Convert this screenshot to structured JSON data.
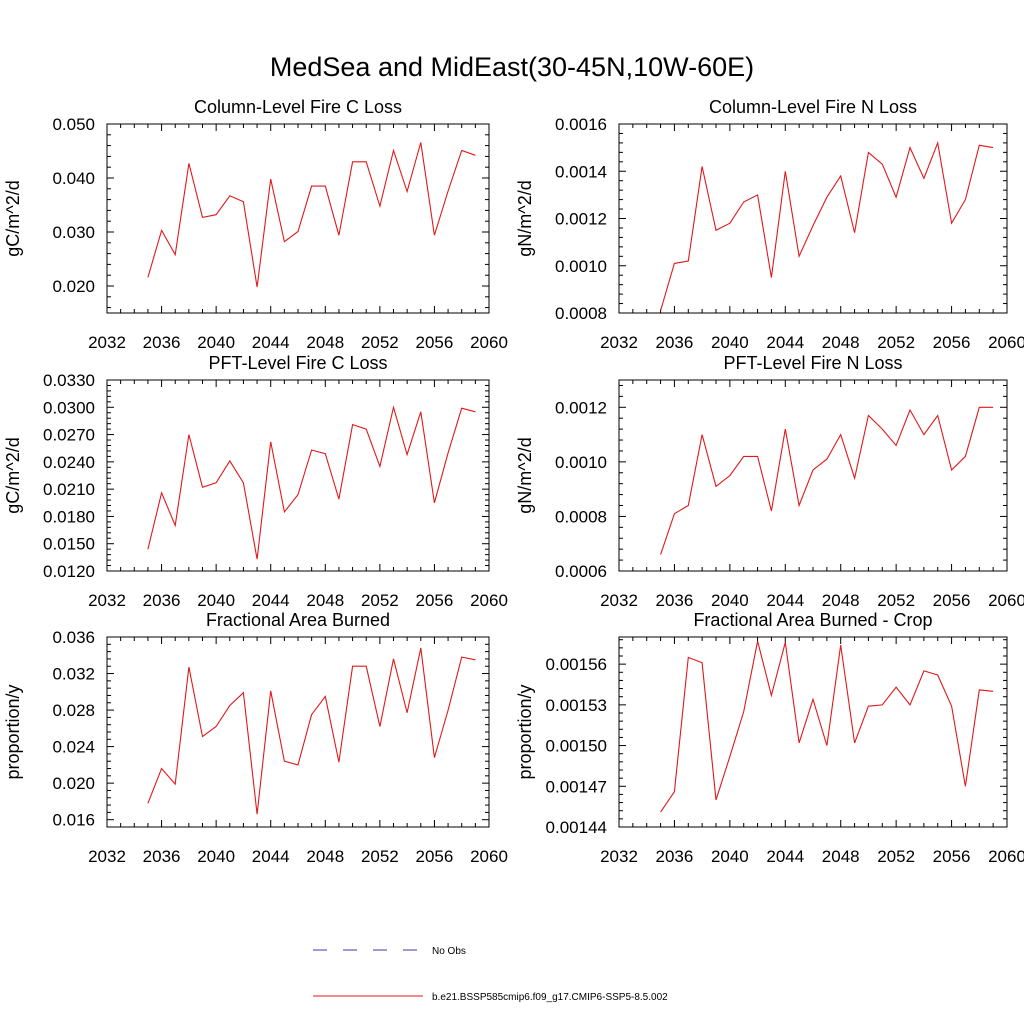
{
  "figure": {
    "title": "MedSea and MidEast(30-45N,10W-60E)"
  },
  "legend": {
    "entries": [
      {
        "label": "No Obs",
        "color": "#3a3aa8",
        "style": "dashed"
      },
      {
        "label": "b.e21.BSSP585cmip6.f09_g17.CMIP6-SSP5-8.5.002",
        "color": "#e0191a",
        "style": "solid"
      }
    ]
  },
  "chart_data": [
    {
      "type": "line",
      "title": "Column-Level Fire C Loss",
      "ylabel": "gC/m^2/d",
      "xlim": [
        2032,
        2060
      ],
      "ylim": [
        0.015,
        0.05
      ],
      "xticks": [
        "2032",
        "2036",
        "2040",
        "2044",
        "2048",
        "2052",
        "2056",
        "2060"
      ],
      "yticks": [
        "0.020",
        "0.030",
        "0.040",
        "0.050"
      ],
      "x": [
        2035,
        2036,
        2037,
        2038,
        2039,
        2040,
        2041,
        2042,
        2043,
        2044,
        2045,
        2046,
        2047,
        2048,
        2049,
        2050,
        2051,
        2052,
        2053,
        2054,
        2055,
        2056,
        2057,
        2058,
        2059
      ],
      "series": [
        {
          "color": "#e0191a",
          "values": [
            0.0216,
            0.0303,
            0.0258,
            0.0427,
            0.0327,
            0.0332,
            0.0367,
            0.0356,
            0.0198,
            0.0398,
            0.0282,
            0.0301,
            0.0385,
            0.0385,
            0.0294,
            0.043,
            0.043,
            0.0348,
            0.0451,
            0.0375,
            0.0466,
            0.0294,
            0.0376,
            0.0451,
            0.0442
          ]
        }
      ]
    },
    {
      "type": "line",
      "title": "Column-Level Fire N Loss",
      "ylabel": "gN/m^2/d",
      "xlim": [
        2032,
        2060
      ],
      "ylim": [
        0.0008,
        0.0016
      ],
      "xticks": [
        "2032",
        "2036",
        "2040",
        "2044",
        "2048",
        "2052",
        "2056",
        "2060"
      ],
      "yticks": [
        "0.0008",
        "0.0010",
        "0.0012",
        "0.0014",
        "0.0016"
      ],
      "x": [
        2035,
        2036,
        2037,
        2038,
        2039,
        2040,
        2041,
        2042,
        2043,
        2044,
        2045,
        2046,
        2047,
        2048,
        2049,
        2050,
        2051,
        2052,
        2053,
        2054,
        2055,
        2056,
        2057,
        2058,
        2059
      ],
      "series": [
        {
          "color": "#e0191a",
          "values": [
            0.00081,
            0.00101,
            0.00102,
            0.00142,
            0.00115,
            0.00118,
            0.00127,
            0.0013,
            0.00095,
            0.0014,
            0.00104,
            0.00117,
            0.00129,
            0.00138,
            0.00114,
            0.00148,
            0.00143,
            0.00129,
            0.0015,
            0.00137,
            0.00152,
            0.00118,
            0.00128,
            0.00151,
            0.0015
          ]
        }
      ]
    },
    {
      "type": "line",
      "title": "PFT-Level Fire C Loss",
      "ylabel": "gC/m^2/d",
      "xlim": [
        2032,
        2060
      ],
      "ylim": [
        0.012,
        0.033
      ],
      "xticks": [
        "2032",
        "2036",
        "2040",
        "2044",
        "2048",
        "2052",
        "2056",
        "2060"
      ],
      "yticks": [
        "0.0120",
        "0.0150",
        "0.0180",
        "0.0210",
        "0.0240",
        "0.0270",
        "0.0300",
        "0.0330"
      ],
      "x": [
        2035,
        2036,
        2037,
        2038,
        2039,
        2040,
        2041,
        2042,
        2043,
        2044,
        2045,
        2046,
        2047,
        2048,
        2049,
        2050,
        2051,
        2052,
        2053,
        2054,
        2055,
        2056,
        2057,
        2058,
        2059
      ],
      "series": [
        {
          "color": "#e0191a",
          "values": [
            0.0144,
            0.0206,
            0.017,
            0.027,
            0.0212,
            0.0217,
            0.0241,
            0.0217,
            0.0133,
            0.0262,
            0.0185,
            0.0204,
            0.0253,
            0.0249,
            0.0199,
            0.0281,
            0.0276,
            0.0235,
            0.03,
            0.0248,
            0.0295,
            0.0195,
            0.025,
            0.0299,
            0.0295
          ]
        }
      ]
    },
    {
      "type": "line",
      "title": "PFT-Level Fire N Loss",
      "ylabel": "gN/m^2/d",
      "xlim": [
        2032,
        2060
      ],
      "ylim": [
        0.0006,
        0.0013
      ],
      "xticks": [
        "2032",
        "2036",
        "2040",
        "2044",
        "2048",
        "2052",
        "2056",
        "2060"
      ],
      "yticks": [
        "0.0006",
        "0.0008",
        "0.0010",
        "0.0012"
      ],
      "x": [
        2035,
        2036,
        2037,
        2038,
        2039,
        2040,
        2041,
        2042,
        2043,
        2044,
        2045,
        2046,
        2047,
        2048,
        2049,
        2050,
        2051,
        2052,
        2053,
        2054,
        2055,
        2056,
        2057,
        2058,
        2059
      ],
      "series": [
        {
          "color": "#e0191a",
          "values": [
            0.00066,
            0.00081,
            0.00084,
            0.0011,
            0.00091,
            0.00095,
            0.00102,
            0.00102,
            0.00082,
            0.00112,
            0.00084,
            0.00097,
            0.00101,
            0.0011,
            0.00094,
            0.00117,
            0.00112,
            0.00106,
            0.00119,
            0.0011,
            0.00117,
            0.00097,
            0.00102,
            0.0012,
            0.0012
          ]
        }
      ]
    },
    {
      "type": "line",
      "title": "Fractional Area Burned",
      "ylabel": "proportion/y",
      "xlim": [
        2032,
        2060
      ],
      "ylim": [
        0.0152,
        0.036
      ],
      "xticks": [
        "2032",
        "2036",
        "2040",
        "2044",
        "2048",
        "2052",
        "2056",
        "2060"
      ],
      "yticks": [
        "0.016",
        "0.020",
        "0.024",
        "0.028",
        "0.032",
        "0.036"
      ],
      "x": [
        2035,
        2036,
        2037,
        2038,
        2039,
        2040,
        2041,
        2042,
        2043,
        2044,
        2045,
        2046,
        2047,
        2048,
        2049,
        2050,
        2051,
        2052,
        2053,
        2054,
        2055,
        2056,
        2057,
        2058,
        2059
      ],
      "series": [
        {
          "color": "#e0191a",
          "values": [
            0.0178,
            0.0216,
            0.0199,
            0.0327,
            0.0251,
            0.0262,
            0.0285,
            0.0299,
            0.0166,
            0.0301,
            0.0224,
            0.022,
            0.0275,
            0.0295,
            0.0223,
            0.0328,
            0.0328,
            0.0262,
            0.0336,
            0.0277,
            0.0348,
            0.0228,
            0.028,
            0.0338,
            0.0335
          ]
        }
      ]
    },
    {
      "type": "line",
      "title": "Fractional Area Burned - Crop",
      "ylabel": "proportion/y",
      "xlim": [
        2032,
        2060
      ],
      "ylim": [
        0.00144,
        0.00158
      ],
      "xticks": [
        "2032",
        "2036",
        "2040",
        "2044",
        "2048",
        "2052",
        "2056",
        "2060"
      ],
      "yticks": [
        "0.00144",
        "0.00147",
        "0.00150",
        "0.00153",
        "0.00156"
      ],
      "x": [
        2035,
        2036,
        2037,
        2038,
        2039,
        2040,
        2041,
        2042,
        2043,
        2044,
        2045,
        2046,
        2047,
        2048,
        2049,
        2050,
        2051,
        2052,
        2053,
        2054,
        2055,
        2056,
        2057,
        2058,
        2059
      ],
      "series": [
        {
          "color": "#e0191a",
          "values": [
            0.001451,
            0.001466,
            0.001565,
            0.001561,
            0.00146,
            0.001492,
            0.001525,
            0.001577,
            0.001537,
            0.001576,
            0.001502,
            0.001534,
            0.0015,
            0.001574,
            0.001502,
            0.001529,
            0.00153,
            0.001543,
            0.00153,
            0.001555,
            0.001552,
            0.001529,
            0.00147,
            0.001541,
            0.00154
          ]
        }
      ]
    }
  ]
}
